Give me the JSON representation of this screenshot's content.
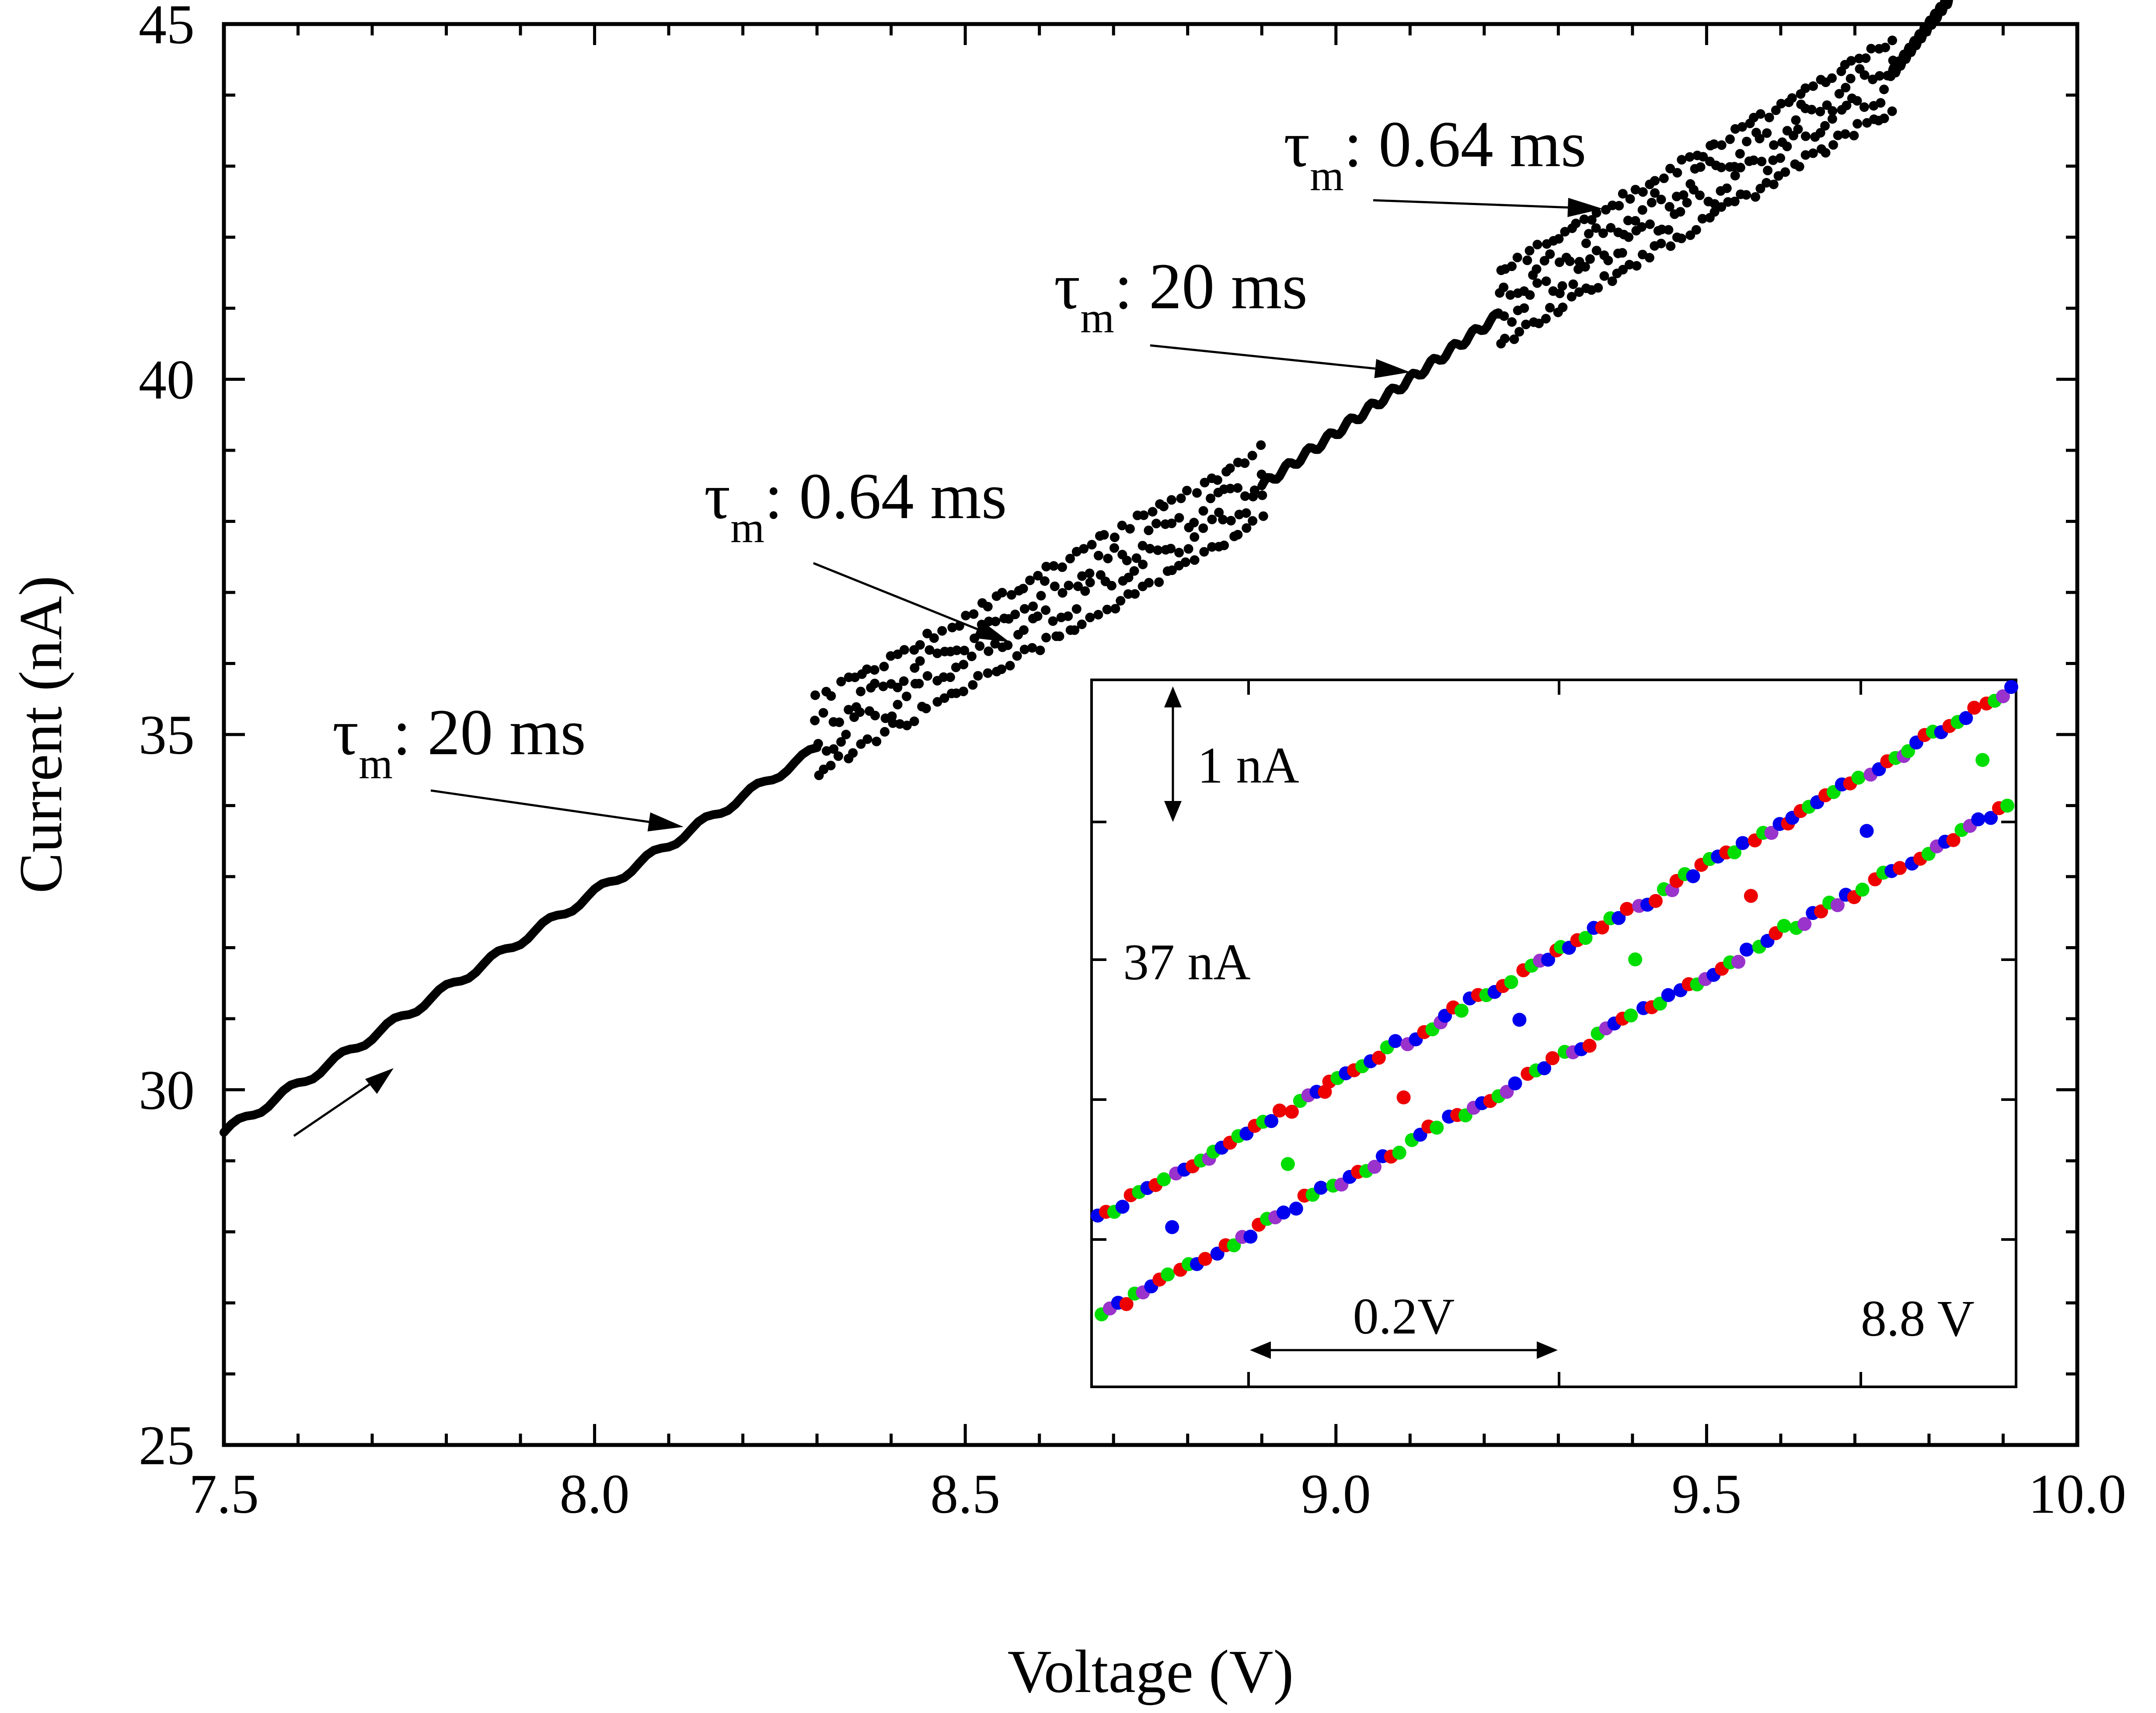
{
  "chart_data": {
    "type": "scatter",
    "xlabel": "Voltage (V)",
    "ylabel": "Current (nA)",
    "xlim": [
      7.5,
      10.0
    ],
    "ylim": [
      25,
      45
    ],
    "xticks": [
      7.5,
      8.0,
      8.5,
      9.0,
      9.5,
      10.0
    ],
    "xtick_labels": [
      "7.5",
      "8.0",
      "8.5",
      "9.0",
      "9.5",
      "10.0"
    ],
    "yticks": [
      25,
      30,
      35,
      40,
      45
    ],
    "ytick_labels": [
      "25",
      "30",
      "35",
      "40",
      "45"
    ],
    "grid": false,
    "main_series": {
      "name": "I-V sweep",
      "color": "#000000",
      "segments": [
        {
          "regime": "slow",
          "x_range": [
            7.5,
            8.3
          ],
          "y_range": [
            29.4,
            34.8
          ]
        },
        {
          "regime": "fast",
          "x_range": [
            8.3,
            8.9
          ],
          "y_range": [
            35.0,
            38.5
          ],
          "band_halfwidth": 0.5
        },
        {
          "regime": "slow",
          "x_range": [
            8.9,
            9.22
          ],
          "y_range": [
            38.5,
            40.9
          ]
        },
        {
          "regime": "fast",
          "x_range": [
            9.22,
            9.75
          ],
          "y_range": [
            41.0,
            44.3
          ],
          "band_halfwidth": 0.5
        },
        {
          "regime": "slow",
          "x_range": [
            9.75,
            9.83
          ],
          "y_range": [
            44.3,
            45.4
          ]
        }
      ]
    },
    "annotations": [
      {
        "tau": "τ",
        "sub": "m",
        "rest": ": 20 ms",
        "points_to": [
          8.12,
          33.7
        ]
      },
      {
        "tau": "τ",
        "sub": "m",
        "rest": ": 0.64 ms",
        "points_to": [
          8.56,
          36.3
        ]
      },
      {
        "tau": "τ",
        "sub": "m",
        "rest": ": 20 ms",
        "points_to": [
          9.1,
          40.1
        ]
      },
      {
        "tau": "τ",
        "sub": "m",
        "rest": ": 0.64 ms",
        "points_to": [
          9.36,
          42.4
        ]
      }
    ],
    "inset": {
      "series_colors": [
        "#0000ee",
        "#ee0000",
        "#00dd00",
        "#9933cc"
      ],
      "scale_y_label": "1 nA",
      "level_label": "37 nA",
      "scale_x_label": "0.2V",
      "voltage_label": "8.8 V"
    }
  }
}
